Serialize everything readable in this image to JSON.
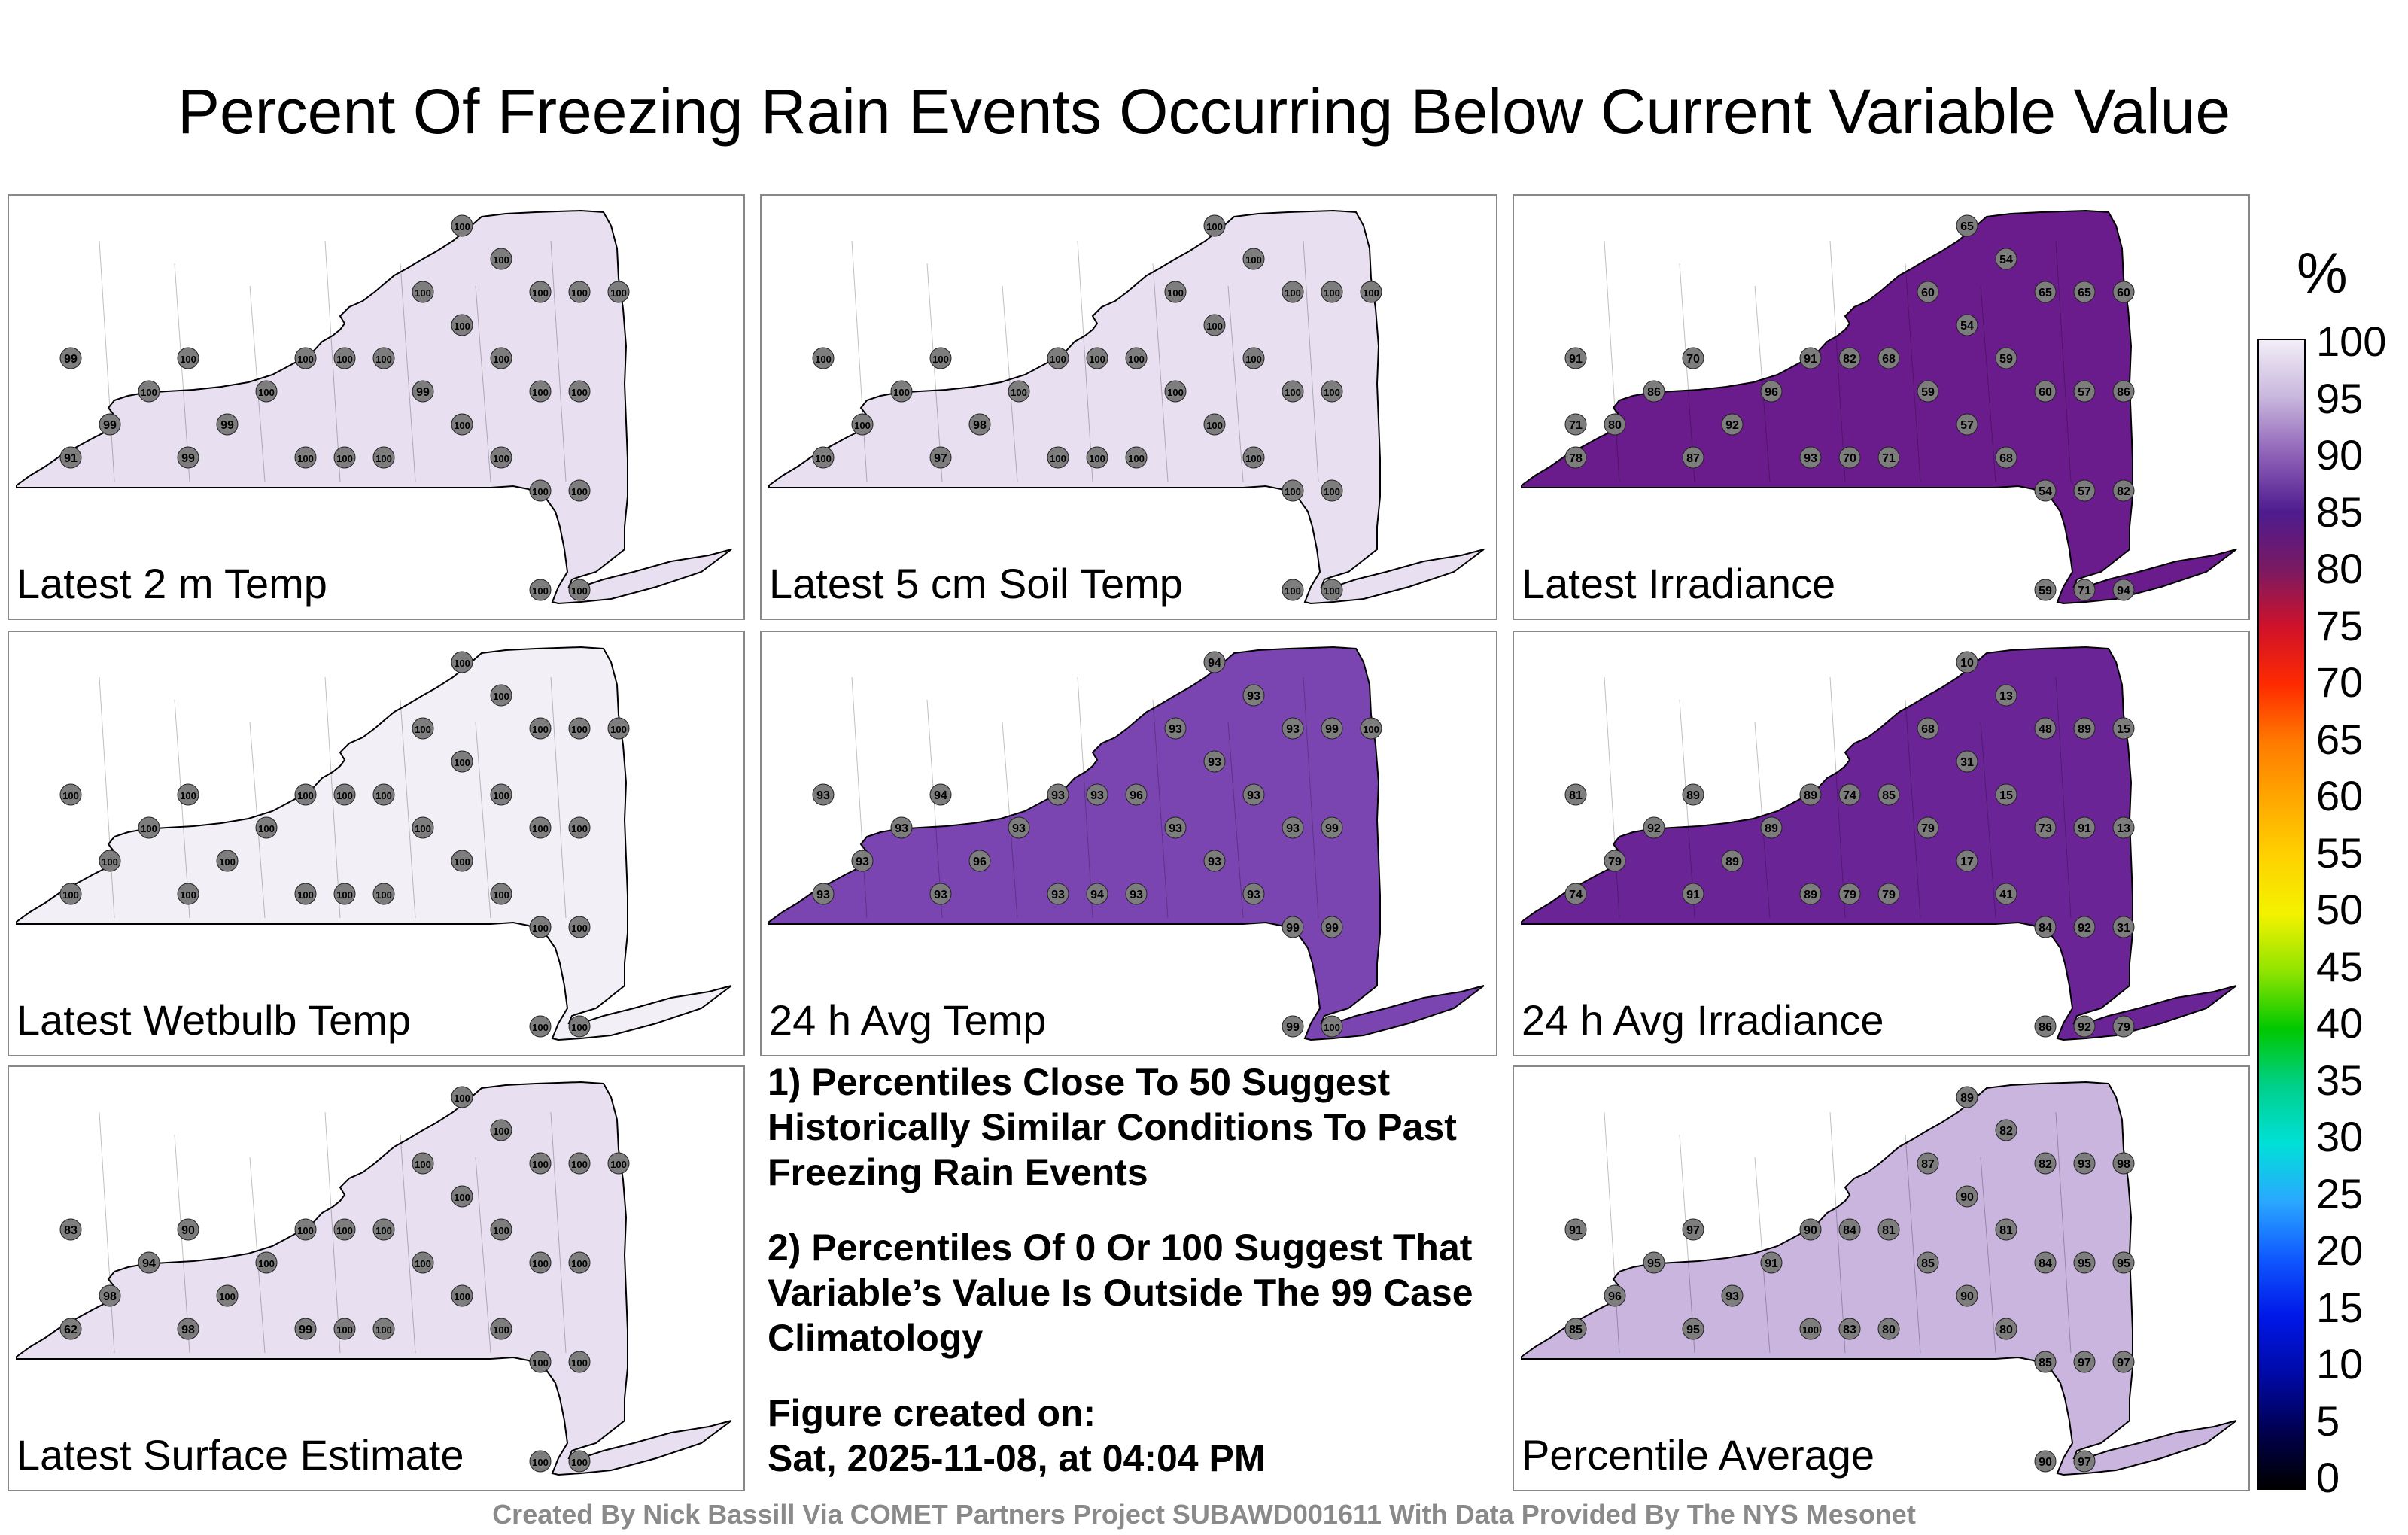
{
  "title": "Percent Of Freezing Rain Events Occurring Below Current Variable Value",
  "colorbar": {
    "unit": "%",
    "ticks": [
      "100",
      "95",
      "90",
      "85",
      "80",
      "75",
      "70",
      "65",
      "60",
      "55",
      "50",
      "45",
      "40",
      "35",
      "30",
      "25",
      "20",
      "15",
      "10",
      "5",
      "0"
    ]
  },
  "panels": [
    {
      "label": "Latest 2 m Temp",
      "fill": "#e8dff0",
      "stations": [
        "99",
        "91",
        "99",
        "100",
        "100",
        "99",
        "99",
        "100",
        "100",
        "100",
        "100",
        "100",
        "100",
        "100",
        "100",
        "99",
        "100",
        "100",
        "100",
        "100",
        "100",
        "100",
        "100",
        "100",
        "100",
        "100",
        "100",
        "100",
        "100",
        "100",
        "100"
      ]
    },
    {
      "label": "Latest 5 cm Soil Temp",
      "fill": "#e8dff0",
      "stations": [
        "100",
        "100",
        "100",
        "100",
        "100",
        "97",
        "98",
        "100",
        "100",
        "100",
        "100",
        "100",
        "100",
        "100",
        "100",
        "100",
        "100",
        "100",
        "100",
        "100",
        "100",
        "100",
        "100",
        "100",
        "100",
        "100",
        "100",
        "100",
        "100",
        "100",
        "100"
      ]
    },
    {
      "label": "Latest Irradiance",
      "fill": "#6a1c8c",
      "stations": [
        "91",
        "78",
        "80",
        "86",
        "70",
        "87",
        "92",
        "96",
        "91",
        "93",
        "82",
        "70",
        "68",
        "71",
        "60",
        "59",
        "65",
        "54",
        "57",
        "54",
        "59",
        "68",
        "65",
        "60",
        "54",
        "59",
        "65",
        "57",
        "57",
        "71",
        "60",
        "86",
        "82",
        "94",
        "71"
      ]
    },
    {
      "label": "Latest Wetbulb Temp",
      "fill": "#f3eff7",
      "stations": [
        "100",
        "100",
        "100",
        "100",
        "100",
        "100",
        "100",
        "100",
        "100",
        "100",
        "100",
        "100",
        "100",
        "100",
        "100",
        "100",
        "100",
        "100",
        "100",
        "100",
        "100",
        "100",
        "100",
        "100",
        "100",
        "100",
        "100",
        "100",
        "100",
        "100",
        "100"
      ]
    },
    {
      "label": "24 h Avg Temp",
      "fill": "#7a45b0",
      "stations": [
        "93",
        "93",
        "93",
        "93",
        "94",
        "93",
        "96",
        "93",
        "93",
        "93",
        "93",
        "94",
        "96",
        "93",
        "93",
        "93",
        "94",
        "93",
        "93",
        "93",
        "93",
        "93",
        "93",
        "93",
        "99",
        "99",
        "99",
        "99",
        "99",
        "100",
        "100"
      ]
    },
    {
      "label": "24 h Avg Irradiance",
      "fill": "#6a2496",
      "stations": [
        "81",
        "74",
        "79",
        "92",
        "89",
        "91",
        "89",
        "89",
        "89",
        "89",
        "74",
        "79",
        "85",
        "79",
        "68",
        "79",
        "10",
        "31",
        "17",
        "13",
        "15",
        "41",
        "48",
        "73",
        "84",
        "86",
        "89",
        "91",
        "92",
        "92",
        "15",
        "13",
        "31",
        "79"
      ]
    },
    {
      "label": "Latest Surface Estimate",
      "fill": "#e8dff0",
      "stations": [
        "83",
        "62",
        "98",
        "94",
        "90",
        "98",
        "100",
        "100",
        "100",
        "99",
        "100",
        "100",
        "100",
        "100",
        "100",
        "100",
        "100",
        "100",
        "100",
        "100",
        "100",
        "100",
        "100",
        "100",
        "100",
        "100",
        "100",
        "100",
        "100",
        "100",
        "100"
      ]
    },
    {
      "label": "Percentile Average",
      "fill": "#c9b5dd",
      "stations": [
        "91",
        "85",
        "96",
        "95",
        "97",
        "95",
        "93",
        "91",
        "90",
        "100",
        "84",
        "83",
        "81",
        "80",
        "87",
        "85",
        "89",
        "90",
        "90",
        "82",
        "81",
        "80",
        "82",
        "84",
        "85",
        "90",
        "93",
        "95",
        "97",
        "97",
        "98",
        "95",
        "97"
      ]
    }
  ],
  "notes": [
    "1) Percentiles Close To 50 Suggest Historically Similar Conditions To Past Freezing Rain Events",
    "2) Percentiles Of 0 Or 100 Suggest That Variable’s Value Is Outside The 99 Case Climatology"
  ],
  "figure_label": "Figure created on:",
  "figure_date": "Sat, 2025-11-08, at 04:04 PM",
  "footer": "Created By Nick Bassill Via COMET Partners Project SUBAWD001611 With Data Provided By The NYS Mesonet"
}
